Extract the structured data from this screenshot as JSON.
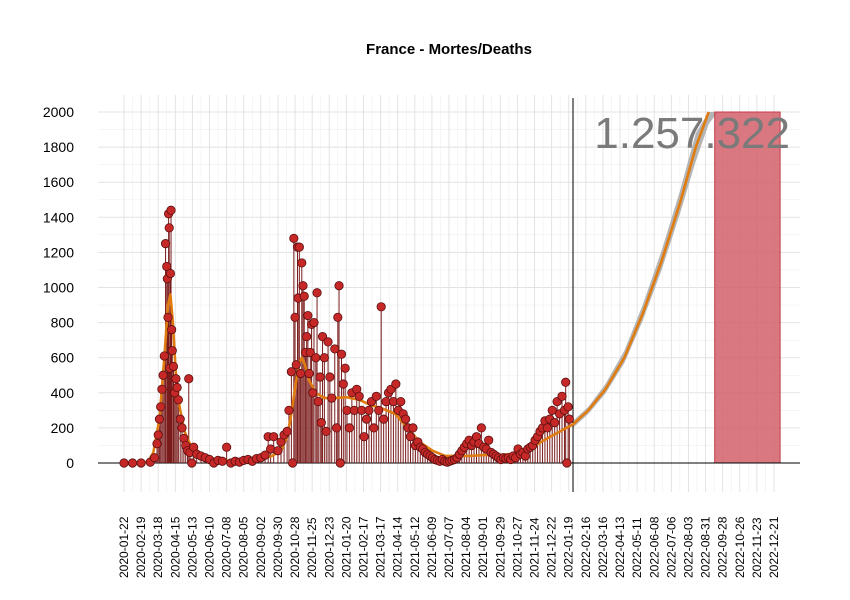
{
  "chart_data": {
    "type": "scatter",
    "title": "France - Mortes/Deaths",
    "total_label": "1.257.322",
    "ylim": [
      -150,
      2000
    ],
    "yticks": [
      0,
      200,
      400,
      600,
      800,
      1000,
      1200,
      1400,
      1600,
      1800,
      2000
    ],
    "xlim": [
      "2020-01-01",
      "2022-12-31"
    ],
    "xtick_labels": [
      "2020-01-22",
      "2020-02-19",
      "2020-03-18",
      "2020-04-15",
      "2020-05-13",
      "2020-06-10",
      "2020-07-08",
      "2020-08-05",
      "2020-09-02",
      "2020-09-30",
      "2020-10-28",
      "2020-11-25",
      "2020-12-23",
      "2021-01-20",
      "2021-02-17",
      "2021-03-17",
      "2021-04-14",
      "2021-05-12",
      "2021-06-09",
      "2021-07-07",
      "2021-08-04",
      "2021-09-01",
      "2021-09-29",
      "2021-10-27",
      "2021-11-24",
      "2021-12-22",
      "2022-01-19",
      "2022-02-16",
      "2022-03-16",
      "2022-04-13",
      "2022-05-11",
      "2022-06-08",
      "2022-07-06",
      "2022-08-03",
      "2022-08-31",
      "2022-09-28",
      "2022-10-26",
      "2022-11-23",
      "2022-12-21"
    ],
    "grid": true,
    "vline_date": "2022-01-26",
    "forecast_bar": {
      "start": "2022-09-15",
      "end": "2022-12-31",
      "value": 2000
    },
    "points": [
      [
        "2020-01-22",
        0
      ],
      [
        "2020-02-05",
        0
      ],
      [
        "2020-02-19",
        0
      ],
      [
        "2020-03-05",
        5
      ],
      [
        "2020-03-12",
        30
      ],
      [
        "2020-03-16",
        110
      ],
      [
        "2020-03-18",
        160
      ],
      [
        "2020-03-20",
        250
      ],
      [
        "2020-03-22",
        320
      ],
      [
        "2020-03-24",
        420
      ],
      [
        "2020-03-26",
        500
      ],
      [
        "2020-03-28",
        610
      ],
      [
        "2020-03-30",
        1250
      ],
      [
        "2020-04-01",
        1120
      ],
      [
        "2020-04-02",
        1050
      ],
      [
        "2020-04-03",
        830
      ],
      [
        "2020-04-04",
        1420
      ],
      [
        "2020-04-05",
        1340
      ],
      [
        "2020-04-06",
        540
      ],
      [
        "2020-04-07",
        1080
      ],
      [
        "2020-04-08",
        1440
      ],
      [
        "2020-04-09",
        760
      ],
      [
        "2020-04-10",
        640
      ],
      [
        "2020-04-12",
        550
      ],
      [
        "2020-04-14",
        400
      ],
      [
        "2020-04-16",
        480
      ],
      [
        "2020-04-18",
        430
      ],
      [
        "2020-04-20",
        360
      ],
      [
        "2020-04-23",
        250
      ],
      [
        "2020-04-26",
        200
      ],
      [
        "2020-04-29",
        140
      ],
      [
        "2020-05-02",
        100
      ],
      [
        "2020-05-05",
        70
      ],
      [
        "2020-05-07",
        480
      ],
      [
        "2020-05-09",
        60
      ],
      [
        "2020-05-12",
        0
      ],
      [
        "2020-05-15",
        90
      ],
      [
        "2020-05-20",
        50
      ],
      [
        "2020-05-27",
        40
      ],
      [
        "2020-06-03",
        30
      ],
      [
        "2020-06-10",
        20
      ],
      [
        "2020-06-17",
        0
      ],
      [
        "2020-06-24",
        15
      ],
      [
        "2020-07-01",
        10
      ],
      [
        "2020-07-08",
        90
      ],
      [
        "2020-07-15",
        0
      ],
      [
        "2020-07-22",
        10
      ],
      [
        "2020-07-29",
        5
      ],
      [
        "2020-08-05",
        15
      ],
      [
        "2020-08-12",
        20
      ],
      [
        "2020-08-19",
        10
      ],
      [
        "2020-08-26",
        25
      ],
      [
        "2020-09-02",
        30
      ],
      [
        "2020-09-09",
        45
      ],
      [
        "2020-09-14",
        150
      ],
      [
        "2020-09-18",
        80
      ],
      [
        "2020-09-23",
        150
      ],
      [
        "2020-09-30",
        70
      ],
      [
        "2020-10-05",
        120
      ],
      [
        "2020-10-10",
        160
      ],
      [
        "2020-10-15",
        180
      ],
      [
        "2020-10-18",
        300
      ],
      [
        "2020-10-22",
        520
      ],
      [
        "2020-10-24",
        0
      ],
      [
        "2020-10-26",
        1280
      ],
      [
        "2020-10-28",
        830
      ],
      [
        "2020-10-30",
        560
      ],
      [
        "2020-11-01",
        1230
      ],
      [
        "2020-11-02",
        940
      ],
      [
        "2020-11-04",
        1230
      ],
      [
        "2020-11-06",
        510
      ],
      [
        "2020-11-08",
        1140
      ],
      [
        "2020-11-10",
        1010
      ],
      [
        "2020-11-12",
        950
      ],
      [
        "2020-11-14",
        630
      ],
      [
        "2020-11-16",
        720
      ],
      [
        "2020-11-18",
        840
      ],
      [
        "2020-11-20",
        510
      ],
      [
        "2020-11-22",
        630
      ],
      [
        "2020-11-24",
        790
      ],
      [
        "2020-11-26",
        400
      ],
      [
        "2020-11-28",
        800
      ],
      [
        "2020-12-01",
        600
      ],
      [
        "2020-12-03",
        970
      ],
      [
        "2020-12-05",
        350
      ],
      [
        "2020-12-08",
        490
      ],
      [
        "2020-12-10",
        230
      ],
      [
        "2020-12-12",
        720
      ],
      [
        "2020-12-15",
        600
      ],
      [
        "2020-12-18",
        180
      ],
      [
        "2020-12-21",
        690
      ],
      [
        "2020-12-24",
        490
      ],
      [
        "2020-12-27",
        370
      ],
      [
        "2021-01-01",
        650
      ],
      [
        "2021-01-04",
        200
      ],
      [
        "2021-01-06",
        830
      ],
      [
        "2021-01-08",
        1010
      ],
      [
        "2021-01-10",
        0
      ],
      [
        "2021-01-12",
        620
      ],
      [
        "2021-01-15",
        450
      ],
      [
        "2021-01-18",
        540
      ],
      [
        "2021-01-21",
        300
      ],
      [
        "2021-01-25",
        200
      ],
      [
        "2021-01-29",
        400
      ],
      [
        "2021-02-02",
        300
      ],
      [
        "2021-02-06",
        420
      ],
      [
        "2021-02-10",
        380
      ],
      [
        "2021-02-14",
        300
      ],
      [
        "2021-02-18",
        150
      ],
      [
        "2021-02-22",
        250
      ],
      [
        "2021-02-26",
        300
      ],
      [
        "2021-03-02",
        350
      ],
      [
        "2021-03-06",
        200
      ],
      [
        "2021-03-10",
        380
      ],
      [
        "2021-03-14",
        300
      ],
      [
        "2021-03-18",
        890
      ],
      [
        "2021-03-22",
        250
      ],
      [
        "2021-03-26",
        350
      ],
      [
        "2021-03-30",
        400
      ],
      [
        "2021-04-03",
        420
      ],
      [
        "2021-04-07",
        350
      ],
      [
        "2021-04-11",
        450
      ],
      [
        "2021-04-15",
        300
      ],
      [
        "2021-04-19",
        350
      ],
      [
        "2021-04-23",
        280
      ],
      [
        "2021-04-27",
        250
      ],
      [
        "2021-05-01",
        200
      ],
      [
        "2021-05-05",
        150
      ],
      [
        "2021-05-09",
        200
      ],
      [
        "2021-05-13",
        100
      ],
      [
        "2021-05-17",
        120
      ],
      [
        "2021-05-21",
        90
      ],
      [
        "2021-05-25",
        80
      ],
      [
        "2021-05-29",
        60
      ],
      [
        "2021-06-02",
        50
      ],
      [
        "2021-06-06",
        40
      ],
      [
        "2021-06-10",
        30
      ],
      [
        "2021-06-14",
        20
      ],
      [
        "2021-06-18",
        15
      ],
      [
        "2021-06-22",
        10
      ],
      [
        "2021-06-26",
        20
      ],
      [
        "2021-06-30",
        10
      ],
      [
        "2021-07-04",
        5
      ],
      [
        "2021-07-08",
        10
      ],
      [
        "2021-07-12",
        15
      ],
      [
        "2021-07-16",
        20
      ],
      [
        "2021-07-20",
        30
      ],
      [
        "2021-07-24",
        50
      ],
      [
        "2021-07-28",
        70
      ],
      [
        "2021-08-01",
        90
      ],
      [
        "2021-08-05",
        110
      ],
      [
        "2021-08-09",
        130
      ],
      [
        "2021-08-13",
        100
      ],
      [
        "2021-08-17",
        120
      ],
      [
        "2021-08-21",
        150
      ],
      [
        "2021-08-25",
        110
      ],
      [
        "2021-08-29",
        200
      ],
      [
        "2021-09-02",
        90
      ],
      [
        "2021-09-06",
        80
      ],
      [
        "2021-09-10",
        130
      ],
      [
        "2021-09-14",
        60
      ],
      [
        "2021-09-18",
        50
      ],
      [
        "2021-09-22",
        40
      ],
      [
        "2021-09-26",
        30
      ],
      [
        "2021-09-30",
        20
      ],
      [
        "2021-10-04",
        30
      ],
      [
        "2021-10-08",
        25
      ],
      [
        "2021-10-12",
        30
      ],
      [
        "2021-10-16",
        20
      ],
      [
        "2021-10-20",
        40
      ],
      [
        "2021-10-24",
        30
      ],
      [
        "2021-10-28",
        80
      ],
      [
        "2021-11-01",
        50
      ],
      [
        "2021-11-05",
        60
      ],
      [
        "2021-11-09",
        40
      ],
      [
        "2021-11-13",
        80
      ],
      [
        "2021-11-17",
        90
      ],
      [
        "2021-11-21",
        100
      ],
      [
        "2021-11-25",
        130
      ],
      [
        "2021-11-29",
        150
      ],
      [
        "2021-12-03",
        180
      ],
      [
        "2021-12-07",
        200
      ],
      [
        "2021-12-11",
        240
      ],
      [
        "2021-12-15",
        200
      ],
      [
        "2021-12-19",
        250
      ],
      [
        "2021-12-23",
        300
      ],
      [
        "2021-12-27",
        230
      ],
      [
        "2021-12-31",
        350
      ],
      [
        "2022-01-04",
        280
      ],
      [
        "2022-01-08",
        380
      ],
      [
        "2022-01-12",
        300
      ],
      [
        "2022-01-14",
        460
      ],
      [
        "2022-01-16",
        0
      ],
      [
        "2022-01-18",
        320
      ],
      [
        "2022-01-20",
        250
      ]
    ],
    "trend": [
      [
        "2020-01-22",
        0
      ],
      [
        "2020-03-01",
        5
      ],
      [
        "2020-03-10",
        60
      ],
      [
        "2020-03-20",
        250
      ],
      [
        "2020-03-28",
        600
      ],
      [
        "2020-04-03",
        900
      ],
      [
        "2020-04-07",
        960
      ],
      [
        "2020-04-11",
        800
      ],
      [
        "2020-04-16",
        500
      ],
      [
        "2020-04-22",
        320
      ],
      [
        "2020-04-30",
        180
      ],
      [
        "2020-05-10",
        100
      ],
      [
        "2020-05-25",
        60
      ],
      [
        "2020-06-10",
        30
      ],
      [
        "2020-07-01",
        15
      ],
      [
        "2020-08-01",
        10
      ],
      [
        "2020-08-20",
        15
      ],
      [
        "2020-09-05",
        25
      ],
      [
        "2020-09-20",
        40
      ],
      [
        "2020-10-05",
        70
      ],
      [
        "2020-10-15",
        150
      ],
      [
        "2020-10-22",
        280
      ],
      [
        "2020-10-29",
        450
      ],
      [
        "2020-11-04",
        570
      ],
      [
        "2020-11-08",
        600
      ],
      [
        "2020-11-13",
        560
      ],
      [
        "2020-11-20",
        470
      ],
      [
        "2020-12-01",
        400
      ],
      [
        "2020-12-15",
        370
      ],
      [
        "2021-01-01",
        370
      ],
      [
        "2021-01-20",
        375
      ],
      [
        "2021-02-10",
        360
      ],
      [
        "2021-03-01",
        330
      ],
      [
        "2021-03-20",
        310
      ],
      [
        "2021-04-10",
        280
      ],
      [
        "2021-04-30",
        200
      ],
      [
        "2021-05-20",
        120
      ],
      [
        "2021-06-10",
        70
      ],
      [
        "2021-07-01",
        40
      ],
      [
        "2021-07-20",
        40
      ],
      [
        "2021-08-10",
        40
      ],
      [
        "2021-09-01",
        45
      ],
      [
        "2021-09-20",
        45
      ],
      [
        "2021-10-15",
        50
      ],
      [
        "2021-11-05",
        70
      ],
      [
        "2021-11-25",
        100
      ],
      [
        "2021-12-15",
        140
      ],
      [
        "2022-01-05",
        180
      ],
      [
        "2022-01-26",
        220
      ],
      [
        "2022-02-20",
        300
      ],
      [
        "2022-03-20",
        420
      ],
      [
        "2022-04-20",
        600
      ],
      [
        "2022-05-20",
        850
      ],
      [
        "2022-06-20",
        1150
      ],
      [
        "2022-07-20",
        1480
      ],
      [
        "2022-08-15",
        1800
      ],
      [
        "2022-09-05",
        2000
      ]
    ],
    "band": [
      [
        "2022-01-26",
        200,
        240
      ],
      [
        "2022-02-20",
        280,
        320
      ],
      [
        "2022-03-20",
        395,
        450
      ],
      [
        "2022-04-20",
        570,
        640
      ],
      [
        "2022-05-20",
        810,
        900
      ],
      [
        "2022-06-20",
        1100,
        1210
      ],
      [
        "2022-07-20",
        1420,
        1550
      ],
      [
        "2022-08-15",
        1720,
        1880
      ],
      [
        "2022-09-05",
        1930,
        2000
      ],
      [
        "2022-09-20",
        2000,
        2000
      ]
    ]
  }
}
